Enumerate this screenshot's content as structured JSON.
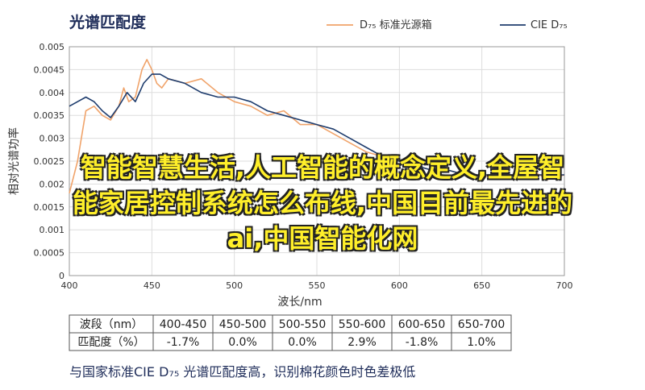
{
  "header": {
    "title": "光谱匹配度"
  },
  "chart_data": {
    "type": "line",
    "title": "光谱匹配度",
    "xlabel": "波长/nm",
    "ylabel": "相对光谱功率",
    "xlim": [
      400,
      700
    ],
    "ylim": [
      0,
      0.005
    ],
    "x_ticks": [
      "400",
      "450",
      "500",
      "550",
      "600",
      "650",
      "700"
    ],
    "y_ticks": [
      "0",
      "0.0005",
      "0.001",
      "0.0015",
      "0.002",
      "0.0025",
      "0.003",
      "0.0035",
      "0.004",
      "0.0045",
      "0.005"
    ],
    "legend_position": "top-right",
    "grid": true,
    "series": [
      {
        "name": "D₇₅ 标准光源箱",
        "color": "#f0a36a",
        "points": [
          [
            400,
            0.0018
          ],
          [
            405,
            0.0025
          ],
          [
            410,
            0.0036
          ],
          [
            415,
            0.0037
          ],
          [
            420,
            0.0035
          ],
          [
            425,
            0.0034
          ],
          [
            430,
            0.0037
          ],
          [
            433,
            0.0041
          ],
          [
            436,
            0.0038
          ],
          [
            440,
            0.0039
          ],
          [
            444,
            0.0045
          ],
          [
            447,
            0.00472
          ],
          [
            450,
            0.0045
          ],
          [
            453,
            0.0042
          ],
          [
            456,
            0.0041
          ],
          [
            460,
            0.0043
          ],
          [
            470,
            0.0042
          ],
          [
            480,
            0.0043
          ],
          [
            490,
            0.004
          ],
          [
            500,
            0.0038
          ],
          [
            510,
            0.0037
          ],
          [
            520,
            0.0035
          ],
          [
            530,
            0.0036
          ],
          [
            540,
            0.0033
          ],
          [
            550,
            0.0033
          ],
          [
            560,
            0.0031
          ],
          [
            570,
            0.0029
          ],
          [
            580,
            0.0027
          ],
          [
            590,
            0.0026
          ],
          [
            600,
            0.0025
          ],
          [
            610,
            0.0024
          ],
          [
            620,
            0.0023
          ],
          [
            630,
            0.0023
          ],
          [
            640,
            0.0022
          ],
          [
            650,
            0.0022
          ],
          [
            660,
            0.0021
          ],
          [
            670,
            0.0022
          ],
          [
            680,
            0.0023
          ],
          [
            690,
            0.0021
          ],
          [
            700,
            0.0022
          ]
        ]
      },
      {
        "name": "CIE D₇₅",
        "color": "#1f3d6e",
        "points": [
          [
            400,
            0.0037
          ],
          [
            405,
            0.0038
          ],
          [
            410,
            0.0039
          ],
          [
            415,
            0.0038
          ],
          [
            420,
            0.0036
          ],
          [
            425,
            0.00345
          ],
          [
            430,
            0.0037
          ],
          [
            435,
            0.004
          ],
          [
            440,
            0.0038
          ],
          [
            445,
            0.0042
          ],
          [
            450,
            0.0044
          ],
          [
            455,
            0.0044
          ],
          [
            460,
            0.0043
          ],
          [
            470,
            0.0042
          ],
          [
            480,
            0.004
          ],
          [
            490,
            0.0039
          ],
          [
            500,
            0.0039
          ],
          [
            510,
            0.0038
          ],
          [
            520,
            0.0036
          ],
          [
            530,
            0.0035
          ],
          [
            540,
            0.0034
          ],
          [
            550,
            0.0033
          ],
          [
            560,
            0.0032
          ],
          [
            570,
            0.003
          ],
          [
            580,
            0.0028
          ],
          [
            590,
            0.0026
          ],
          [
            600,
            0.0025
          ],
          [
            610,
            0.0024
          ],
          [
            620,
            0.0023
          ],
          [
            630,
            0.0023
          ],
          [
            640,
            0.0022
          ],
          [
            650,
            0.0022
          ],
          [
            660,
            0.0022
          ],
          [
            670,
            0.0022
          ],
          [
            680,
            0.0022
          ],
          [
            690,
            0.0022
          ],
          [
            700,
            0.0022
          ]
        ]
      }
    ]
  },
  "table": {
    "rows": [
      [
        "波段（nm）",
        "400-450",
        "450-500",
        "500-550",
        "550-600",
        "600-650",
        "650-700"
      ],
      [
        "匹配度（%）",
        "-1.7%",
        "0.0%",
        "0.0%",
        "2.9%",
        "-1.8%",
        "1.0%"
      ]
    ]
  },
  "caption": "与国家标准CIE D₇₅ 光谱匹配度高，识别棉花颜色时色差极低",
  "overlay": {
    "line1": "智能智慧生活,人工智能的概念定义,全屋智",
    "line2": "能家居控制系统怎么布线,中国目前最先进的",
    "line3": "ai,中国智能化网"
  }
}
